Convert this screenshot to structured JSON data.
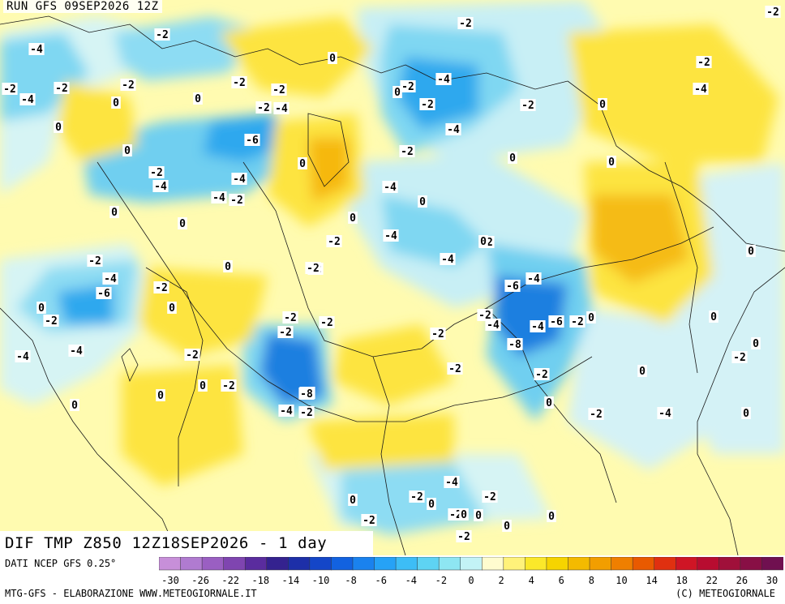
{
  "run_label": "RUN GFS 09SEP2026 12Z",
  "title": "DIF TMP Z850 12Z18SEP2026 - 1 day",
  "source": "DATI NCEP GFS 0.25°",
  "credit_left": "MTG-GFS - ELABORAZIONE WWW.METEOGIORNALE.IT",
  "credit_right": "(C) METEOGIORNALE",
  "colorbar": {
    "colors": [
      "#c78fd9",
      "#b07bd0",
      "#9a5fc2",
      "#7f45b0",
      "#5a2c9e",
      "#34228f",
      "#1d2fa8",
      "#1446c8",
      "#1262e0",
      "#1a82ee",
      "#26a2f6",
      "#3dbdf6",
      "#5ed3f3",
      "#8ee6f2",
      "#c3f3f6",
      "#fffccf",
      "#fff27a",
      "#fbe82a",
      "#f6d400",
      "#f4ba00",
      "#f29e00",
      "#ef7f00",
      "#e95a00",
      "#e03010",
      "#cf1525",
      "#b80c30",
      "#a0103a",
      "#880f45",
      "#701050"
    ],
    "tick_labels": [
      "-30",
      "-26",
      "-22",
      "-18",
      "-14",
      "-10",
      "-8",
      "-6",
      "-4",
      "-2",
      "0",
      "2",
      "4",
      "6",
      "8",
      "10",
      "14",
      "18",
      "22",
      "26",
      "30"
    ]
  },
  "map_labels": [
    {
      "text": "-2"
    },
    {
      "text": "-4"
    },
    {
      "text": "-2"
    },
    {
      "text": "-4"
    },
    {
      "text": "-2"
    },
    {
      "text": "0"
    },
    {
      "text": "-2"
    },
    {
      "text": "0"
    },
    {
      "text": "-2"
    },
    {
      "text": "0"
    },
    {
      "text": "-2"
    },
    {
      "text": "-4"
    },
    {
      "text": "-6"
    },
    {
      "text": "0"
    },
    {
      "text": "-2"
    },
    {
      "text": "-4"
    },
    {
      "text": "-4"
    },
    {
      "text": "-4"
    },
    {
      "text": "-2"
    },
    {
      "text": "0"
    },
    {
      "text": "0"
    },
    {
      "text": "0"
    },
    {
      "text": "-2"
    },
    {
      "text": "0"
    },
    {
      "text": "-2"
    },
    {
      "text": "-4"
    },
    {
      "text": "-6"
    },
    {
      "text": "-2"
    },
    {
      "text": "-2"
    },
    {
      "text": "0"
    },
    {
      "text": "-2"
    },
    {
      "text": "-4"
    },
    {
      "text": "-4"
    },
    {
      "text": "-2"
    },
    {
      "text": "0"
    },
    {
      "text": "-2"
    },
    {
      "text": "0"
    },
    {
      "text": "-2"
    },
    {
      "text": "0"
    },
    {
      "text": "0"
    },
    {
      "text": "-2"
    },
    {
      "text": "-4"
    },
    {
      "text": "-2"
    },
    {
      "text": "-2"
    },
    {
      "text": "-2"
    },
    {
      "text": "0"
    },
    {
      "text": "-2"
    },
    {
      "text": "0"
    },
    {
      "text": "-2"
    },
    {
      "text": "-4"
    },
    {
      "text": "-2"
    },
    {
      "text": "-4"
    },
    {
      "text": "-2"
    },
    {
      "text": "0"
    },
    {
      "text": "0"
    },
    {
      "text": "-2"
    },
    {
      "text": "-4"
    },
    {
      "text": "-2"
    },
    {
      "text": "-2"
    },
    {
      "text": "-6"
    },
    {
      "text": "-4"
    },
    {
      "text": "-2"
    },
    {
      "text": "-4"
    },
    {
      "text": "-4"
    },
    {
      "text": "-6"
    },
    {
      "text": "-2"
    },
    {
      "text": "0"
    },
    {
      "text": "-8"
    },
    {
      "text": "-2"
    },
    {
      "text": "-4"
    },
    {
      "text": "-2"
    },
    {
      "text": "0"
    },
    {
      "text": "0"
    },
    {
      "text": "-4"
    },
    {
      "text": "-2"
    },
    {
      "text": "-8"
    },
    {
      "text": "-4"
    },
    {
      "text": "-2"
    },
    {
      "text": "0"
    },
    {
      "text": "-2"
    },
    {
      "text": "0"
    },
    {
      "text": "0"
    },
    {
      "text": "0"
    },
    {
      "text": "-2"
    },
    {
      "text": "0"
    },
    {
      "text": "0"
    },
    {
      "text": "-2"
    },
    {
      "text": "-2"
    },
    {
      "text": "0"
    },
    {
      "text": "-4"
    },
    {
      "text": "0"
    },
    {
      "text": "0"
    },
    {
      "text": "-2"
    },
    {
      "text": "-2"
    },
    {
      "text": "-4"
    },
    {
      "text": "-2"
    },
    {
      "text": "0"
    },
    {
      "text": "-2"
    },
    {
      "text": "0"
    },
    {
      "text": "0"
    },
    {
      "text": "0"
    },
    {
      "text": "0"
    },
    {
      "text": "-2"
    },
    {
      "text": "0"
    }
  ]
}
